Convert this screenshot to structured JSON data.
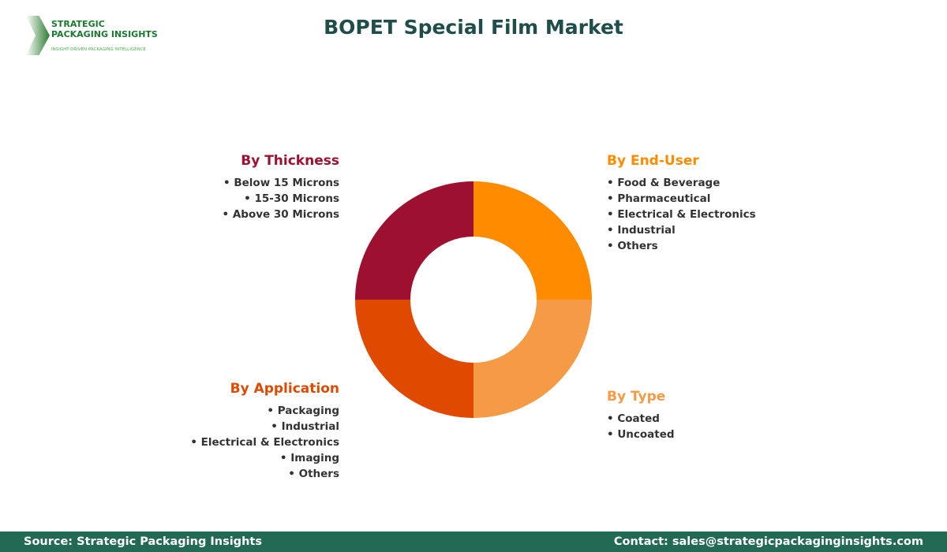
{
  "title": "BOPET Special Film Market",
  "logo": {
    "line1": "STRATEGIC",
    "line2": "PACKAGING INSIGHTS",
    "tagline": "INSIGHT-DRIVEN PACKAGING INTELLIGENCE"
  },
  "segments": [
    {
      "key": "thickness",
      "title": "By Thickness",
      "color": "#9e1030",
      "items": [
        "Below 15 Microns",
        "15-30 Microns",
        "Above 30 Microns"
      ]
    },
    {
      "key": "end_user",
      "title": "By End-User",
      "color": "#ff8c00",
      "items": [
        "Food & Beverage",
        "Pharmaceutical",
        "Electrical & Electronics",
        "Industrial",
        "Others"
      ]
    },
    {
      "key": "application",
      "title": "By Application",
      "color": "#e04a00",
      "items": [
        "Packaging",
        "Industrial",
        "Electrical & Electronics",
        "Imaging",
        "Others"
      ]
    },
    {
      "key": "type",
      "title": "By Type",
      "color": "#f59b45",
      "items": [
        "Coated",
        "Uncoated"
      ]
    }
  ],
  "chart_data": {
    "type": "pie",
    "donut": true,
    "categories": [
      "By End-User",
      "By Type",
      "By Application",
      "By Thickness"
    ],
    "values": [
      25,
      25,
      25,
      25
    ],
    "colors": [
      "#ff8c00",
      "#f59b45",
      "#e04a00",
      "#9e1030"
    ]
  },
  "footer": {
    "source": "Source: Strategic Packaging Insights",
    "contact": "Contact: sales@strategicpackaginginsights.com"
  }
}
